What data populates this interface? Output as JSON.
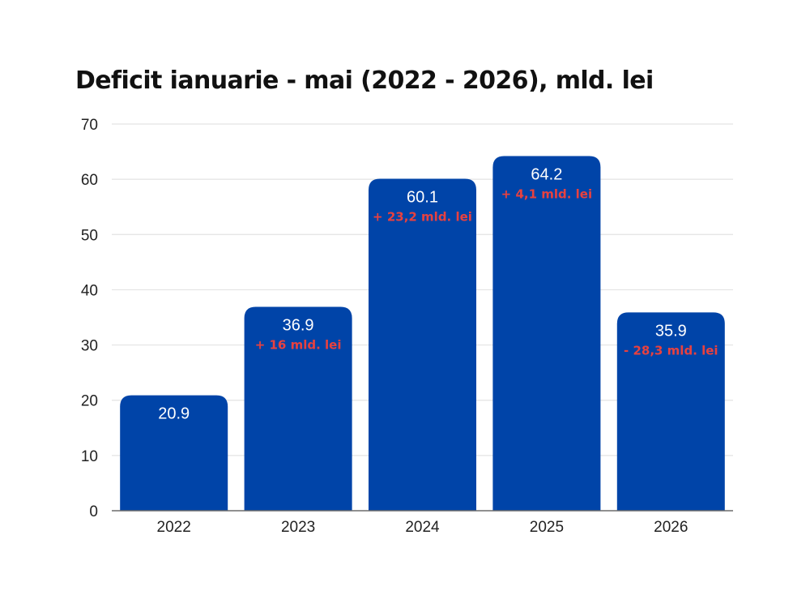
{
  "chart_data": {
    "type": "bar",
    "title": "Deficit ianuarie - mai (2022 - 2026), mld. lei",
    "xlabel": "",
    "ylabel": "",
    "categories": [
      "2022",
      "2023",
      "2024",
      "2025",
      "2026"
    ],
    "values": [
      20.9,
      36.9,
      60.1,
      64.2,
      35.9
    ],
    "value_labels": [
      "20.9",
      "36.9",
      "60.1",
      "64.2",
      "35.9"
    ],
    "change_labels": [
      "",
      "+ 16 mld. lei",
      "+ 23,2 mld. lei",
      "+ 4,1 mld. lei",
      "- 28,3 mld. lei"
    ],
    "ylim": [
      0,
      70
    ],
    "yticks": [
      0,
      10,
      20,
      30,
      40,
      50,
      60,
      70
    ],
    "grid": true,
    "legend": "none",
    "colors": {
      "bar": "#0044a8",
      "value_text": "#ffffff",
      "change_text": "#e8413f",
      "grid": "#e3e3e3",
      "axis": "#6b6b6b"
    }
  }
}
